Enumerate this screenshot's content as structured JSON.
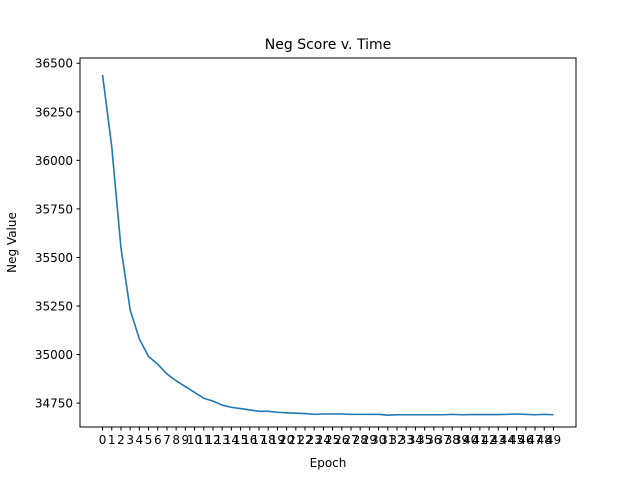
{
  "chart_data": {
    "type": "line",
    "title": "Neg Score v. Time",
    "xlabel": "Epoch",
    "ylabel": "Neg Value",
    "x": [
      0,
      1,
      2,
      3,
      4,
      5,
      6,
      7,
      8,
      9,
      10,
      11,
      12,
      13,
      14,
      15,
      16,
      17,
      18,
      19,
      20,
      21,
      22,
      23,
      24,
      25,
      26,
      27,
      28,
      29,
      30,
      31,
      32,
      33,
      34,
      35,
      36,
      37,
      38,
      39,
      40,
      41,
      42,
      43,
      44,
      45,
      46,
      47,
      48,
      49
    ],
    "series": [
      {
        "color": "#1f77b4",
        "values": [
          36440,
          36070,
          35550,
          35230,
          35080,
          34990,
          34950,
          34900,
          34865,
          34835,
          34805,
          34775,
          34760,
          34740,
          34728,
          34722,
          34715,
          34708,
          34708,
          34703,
          34700,
          34698,
          34696,
          34692,
          34694,
          34694,
          34694,
          34692,
          34692,
          34692,
          34692,
          34688,
          34690,
          34690,
          34690,
          34690,
          34690,
          34690,
          34692,
          34690,
          34691,
          34691,
          34691,
          34691,
          34692,
          34694,
          34692,
          34690,
          34692,
          34690
        ]
      }
    ],
    "xticks": [
      0,
      1,
      2,
      3,
      4,
      5,
      6,
      7,
      8,
      9,
      10,
      11,
      12,
      13,
      14,
      15,
      16,
      17,
      18,
      19,
      20,
      21,
      22,
      23,
      24,
      25,
      26,
      27,
      28,
      29,
      30,
      31,
      32,
      33,
      34,
      35,
      36,
      37,
      38,
      39,
      40,
      41,
      42,
      43,
      44,
      45,
      46,
      47,
      48,
      49
    ],
    "yticks": [
      34750,
      35000,
      35250,
      35500,
      35750,
      36000,
      36250,
      36500
    ],
    "xlim": [
      -2.45,
      51.45
    ],
    "ylim": [
      34627,
      36527
    ],
    "grid": false,
    "legend": "none"
  }
}
